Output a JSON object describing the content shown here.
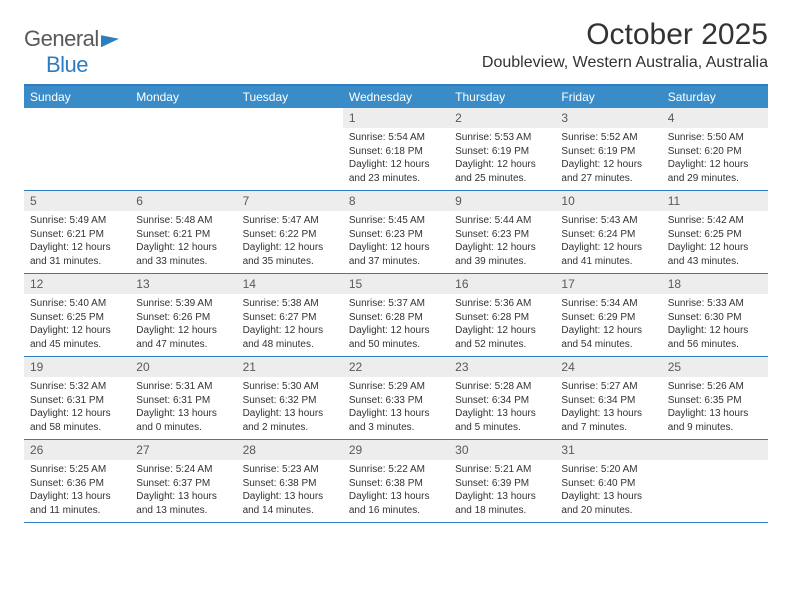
{
  "logo": {
    "part1": "General",
    "part2": "Blue"
  },
  "title": "October 2025",
  "location": "Doubleview, Western Australia, Australia",
  "colors": {
    "accent": "#3a8cc9",
    "border": "#2d7dc0",
    "daterow_bg": "#ededed",
    "text": "#333333",
    "muted": "#595959"
  },
  "day_names": [
    "Sunday",
    "Monday",
    "Tuesday",
    "Wednesday",
    "Thursday",
    "Friday",
    "Saturday"
  ],
  "weeks": [
    [
      null,
      null,
      null,
      {
        "d": "1",
        "sr": "5:54 AM",
        "ss": "6:18 PM",
        "dl": "12 hours and 23 minutes."
      },
      {
        "d": "2",
        "sr": "5:53 AM",
        "ss": "6:19 PM",
        "dl": "12 hours and 25 minutes."
      },
      {
        "d": "3",
        "sr": "5:52 AM",
        "ss": "6:19 PM",
        "dl": "12 hours and 27 minutes."
      },
      {
        "d": "4",
        "sr": "5:50 AM",
        "ss": "6:20 PM",
        "dl": "12 hours and 29 minutes."
      }
    ],
    [
      {
        "d": "5",
        "sr": "5:49 AM",
        "ss": "6:21 PM",
        "dl": "12 hours and 31 minutes."
      },
      {
        "d": "6",
        "sr": "5:48 AM",
        "ss": "6:21 PM",
        "dl": "12 hours and 33 minutes."
      },
      {
        "d": "7",
        "sr": "5:47 AM",
        "ss": "6:22 PM",
        "dl": "12 hours and 35 minutes."
      },
      {
        "d": "8",
        "sr": "5:45 AM",
        "ss": "6:23 PM",
        "dl": "12 hours and 37 minutes."
      },
      {
        "d": "9",
        "sr": "5:44 AM",
        "ss": "6:23 PM",
        "dl": "12 hours and 39 minutes."
      },
      {
        "d": "10",
        "sr": "5:43 AM",
        "ss": "6:24 PM",
        "dl": "12 hours and 41 minutes."
      },
      {
        "d": "11",
        "sr": "5:42 AM",
        "ss": "6:25 PM",
        "dl": "12 hours and 43 minutes."
      }
    ],
    [
      {
        "d": "12",
        "sr": "5:40 AM",
        "ss": "6:25 PM",
        "dl": "12 hours and 45 minutes."
      },
      {
        "d": "13",
        "sr": "5:39 AM",
        "ss": "6:26 PM",
        "dl": "12 hours and 47 minutes."
      },
      {
        "d": "14",
        "sr": "5:38 AM",
        "ss": "6:27 PM",
        "dl": "12 hours and 48 minutes."
      },
      {
        "d": "15",
        "sr": "5:37 AM",
        "ss": "6:28 PM",
        "dl": "12 hours and 50 minutes."
      },
      {
        "d": "16",
        "sr": "5:36 AM",
        "ss": "6:28 PM",
        "dl": "12 hours and 52 minutes."
      },
      {
        "d": "17",
        "sr": "5:34 AM",
        "ss": "6:29 PM",
        "dl": "12 hours and 54 minutes."
      },
      {
        "d": "18",
        "sr": "5:33 AM",
        "ss": "6:30 PM",
        "dl": "12 hours and 56 minutes."
      }
    ],
    [
      {
        "d": "19",
        "sr": "5:32 AM",
        "ss": "6:31 PM",
        "dl": "12 hours and 58 minutes."
      },
      {
        "d": "20",
        "sr": "5:31 AM",
        "ss": "6:31 PM",
        "dl": "13 hours and 0 minutes."
      },
      {
        "d": "21",
        "sr": "5:30 AM",
        "ss": "6:32 PM",
        "dl": "13 hours and 2 minutes."
      },
      {
        "d": "22",
        "sr": "5:29 AM",
        "ss": "6:33 PM",
        "dl": "13 hours and 3 minutes."
      },
      {
        "d": "23",
        "sr": "5:28 AM",
        "ss": "6:34 PM",
        "dl": "13 hours and 5 minutes."
      },
      {
        "d": "24",
        "sr": "5:27 AM",
        "ss": "6:34 PM",
        "dl": "13 hours and 7 minutes."
      },
      {
        "d": "25",
        "sr": "5:26 AM",
        "ss": "6:35 PM",
        "dl": "13 hours and 9 minutes."
      }
    ],
    [
      {
        "d": "26",
        "sr": "5:25 AM",
        "ss": "6:36 PM",
        "dl": "13 hours and 11 minutes."
      },
      {
        "d": "27",
        "sr": "5:24 AM",
        "ss": "6:37 PM",
        "dl": "13 hours and 13 minutes."
      },
      {
        "d": "28",
        "sr": "5:23 AM",
        "ss": "6:38 PM",
        "dl": "13 hours and 14 minutes."
      },
      {
        "d": "29",
        "sr": "5:22 AM",
        "ss": "6:38 PM",
        "dl": "13 hours and 16 minutes."
      },
      {
        "d": "30",
        "sr": "5:21 AM",
        "ss": "6:39 PM",
        "dl": "13 hours and 18 minutes."
      },
      {
        "d": "31",
        "sr": "5:20 AM",
        "ss": "6:40 PM",
        "dl": "13 hours and 20 minutes."
      },
      null
    ]
  ],
  "labels": {
    "sunrise": "Sunrise:",
    "sunset": "Sunset:",
    "daylight": "Daylight:"
  }
}
